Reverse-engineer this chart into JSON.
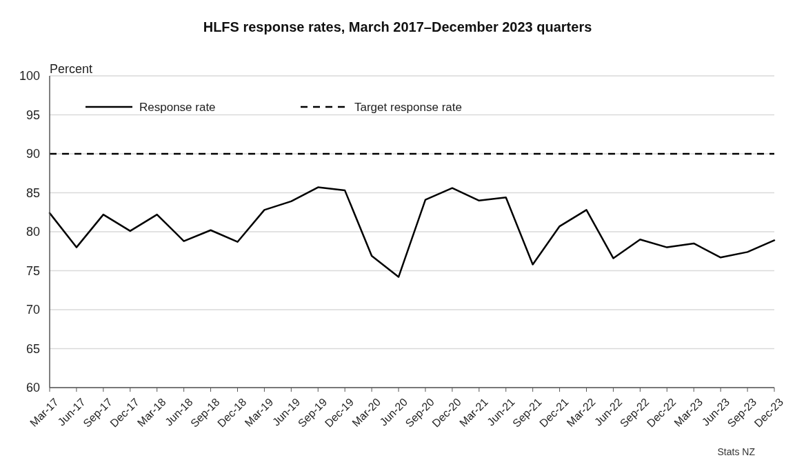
{
  "chart_data": {
    "type": "line",
    "title": "HLFS response rates, March 2017–December 2023 quarters",
    "ylabel": "Percent",
    "categories": [
      "Mar-17",
      "Jun-17",
      "Sep-17",
      "Dec-17",
      "Mar-18",
      "Jun-18",
      "Sep-18",
      "Dec-18",
      "Mar-19",
      "Jun-19",
      "Sep-19",
      "Dec-19",
      "Mar-20",
      "Jun-20",
      "Sep-20",
      "Dec-20",
      "Mar-21",
      "Jun-21",
      "Sep-21",
      "Dec-21",
      "Mar-22",
      "Jun-22",
      "Sep-22",
      "Dec-22",
      "Mar-23",
      "Jun-23",
      "Sep-23",
      "Dec-23"
    ],
    "series": [
      {
        "name": "Response rate",
        "color": "#000000",
        "values": [
          82.4,
          78.0,
          82.2,
          80.1,
          82.2,
          78.8,
          80.2,
          78.7,
          82.8,
          83.9,
          85.7,
          85.3,
          76.9,
          74.2,
          84.1,
          85.6,
          84.0,
          84.4,
          75.8,
          80.7,
          82.8,
          76.6,
          79.0,
          78.0,
          78.5,
          76.7,
          77.4,
          78.9
        ]
      }
    ],
    "ref_lines": [
      {
        "axis": "y",
        "value": 90,
        "label": "Target response rate",
        "color": "#000000",
        "line_style": "dashed"
      }
    ],
    "ylim": [
      60,
      100
    ],
    "yticks": [
      60,
      65,
      70,
      75,
      80,
      85,
      90,
      95,
      100
    ],
    "grid": "y",
    "legend": "top left",
    "line_style": "solid",
    "marker": "none",
    "annotations": [
      "Stats NZ"
    ]
  }
}
